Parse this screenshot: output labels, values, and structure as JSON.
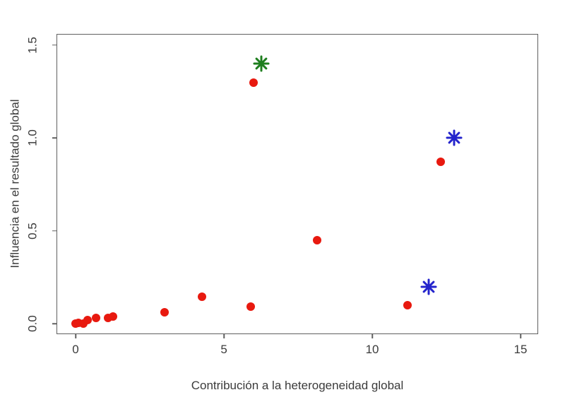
{
  "chart_data": {
    "type": "scatter",
    "title": "",
    "xlabel": "Contribución a la heterogeneidad global",
    "ylabel": "Influencia en el resultado global",
    "xlim": [
      -0.62,
      15.57
    ],
    "ylim": [
      -0.053,
      1.557
    ],
    "x_ticks": [
      "0",
      "5",
      "10",
      "15"
    ],
    "y_ticks": [
      "0.0",
      "0.5",
      "1.0",
      "1.5"
    ],
    "grid": false,
    "legend": "none",
    "colors": {
      "study_point": "#e8190f",
      "highlight_green": "#1e7e1e",
      "highlight_blue": "#2424cc",
      "axis": "#606060",
      "text": "#3b3b3b",
      "background": "#ffffff"
    },
    "series": [
      {
        "name": "study",
        "marker": "circle",
        "color": "#e8190f",
        "points": [
          [
            0.0,
            0.0
          ],
          [
            0.1,
            0.005
          ],
          [
            0.25,
            0.0
          ],
          [
            0.4,
            0.02
          ],
          [
            0.7,
            0.03
          ],
          [
            1.1,
            0.03
          ],
          [
            1.25,
            0.04
          ],
          [
            3.0,
            0.06
          ],
          [
            4.25,
            0.145
          ],
          [
            5.9,
            0.09
          ],
          [
            6.0,
            1.3
          ],
          [
            8.15,
            0.45
          ],
          [
            11.2,
            0.1
          ],
          [
            12.3,
            0.87
          ]
        ]
      },
      {
        "name": "highlight-green",
        "marker": "asterisk",
        "color": "#1e7e1e",
        "points": [
          [
            6.25,
            1.4
          ]
        ]
      },
      {
        "name": "highlight-blue",
        "marker": "asterisk",
        "color": "#2424cc",
        "points": [
          [
            11.9,
            0.2
          ],
          [
            12.75,
            1.0
          ]
        ]
      }
    ]
  }
}
